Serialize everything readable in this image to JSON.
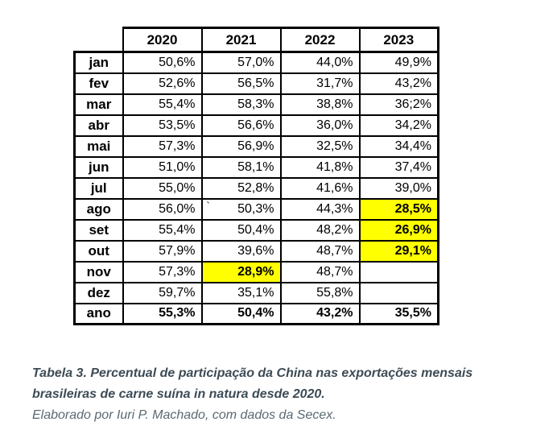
{
  "table": {
    "columns": [
      "2020",
      "2021",
      "2022",
      "2023"
    ],
    "rows": [
      {
        "label": "jan",
        "values": [
          "50,6%",
          "57,0%",
          "44,0%",
          "49,9%"
        ]
      },
      {
        "label": "fev",
        "values": [
          "52,6%",
          "56,5%",
          "31,7%",
          "43,2%"
        ]
      },
      {
        "label": "mar",
        "values": [
          "55,4%",
          "58,3%",
          "38,8%",
          "36;2%"
        ]
      },
      {
        "label": "abr",
        "values": [
          "53,5%",
          "56,6%",
          "36,0%",
          "34,2%"
        ]
      },
      {
        "label": "mai",
        "values": [
          "57,3%",
          "56,9%",
          "32,5%",
          "34,4%"
        ]
      },
      {
        "label": "jun",
        "values": [
          "51,0%",
          "58,1%",
          "41,8%",
          "37,4%"
        ]
      },
      {
        "label": "jul",
        "values": [
          "55,0%",
          "52,8%",
          "41,6%",
          "39,0%"
        ]
      },
      {
        "label": "ago",
        "values": [
          "56,0%",
          "50,3%",
          "44,3%",
          "28,5%"
        ]
      },
      {
        "label": "set",
        "values": [
          "55,4%",
          "50,4%",
          "48,2%",
          "26,9%"
        ]
      },
      {
        "label": "out",
        "values": [
          "57,9%",
          "39,6%",
          "48,7%",
          "29,1%"
        ]
      },
      {
        "label": "nov",
        "values": [
          "57,3%",
          "28,9%",
          "48,7%",
          ""
        ]
      },
      {
        "label": "dez",
        "values": [
          "59,7%",
          "35,1%",
          "55,8%",
          ""
        ]
      },
      {
        "label": "ano",
        "values": [
          "55,3%",
          "50,4%",
          "43,2%",
          "35,5%"
        ]
      }
    ],
    "highlighted_cells": [
      {
        "row": "ago",
        "col": "2023"
      },
      {
        "row": "set",
        "col": "2023"
      },
      {
        "row": "out",
        "col": "2023"
      },
      {
        "row": "nov",
        "col": "2021"
      }
    ],
    "highlight_color": "#ffff00",
    "bold_row": "ano",
    "stray_mark": {
      "row": "ago",
      "col": "2021",
      "char": "`"
    }
  },
  "caption": {
    "title": "Tabela 3. Percentual de participação da China nas exportações mensais brasileiras de carne suína in natura desde 2020.",
    "source": "Elaborado por Iuri P. Machado, com dados da Secex."
  }
}
